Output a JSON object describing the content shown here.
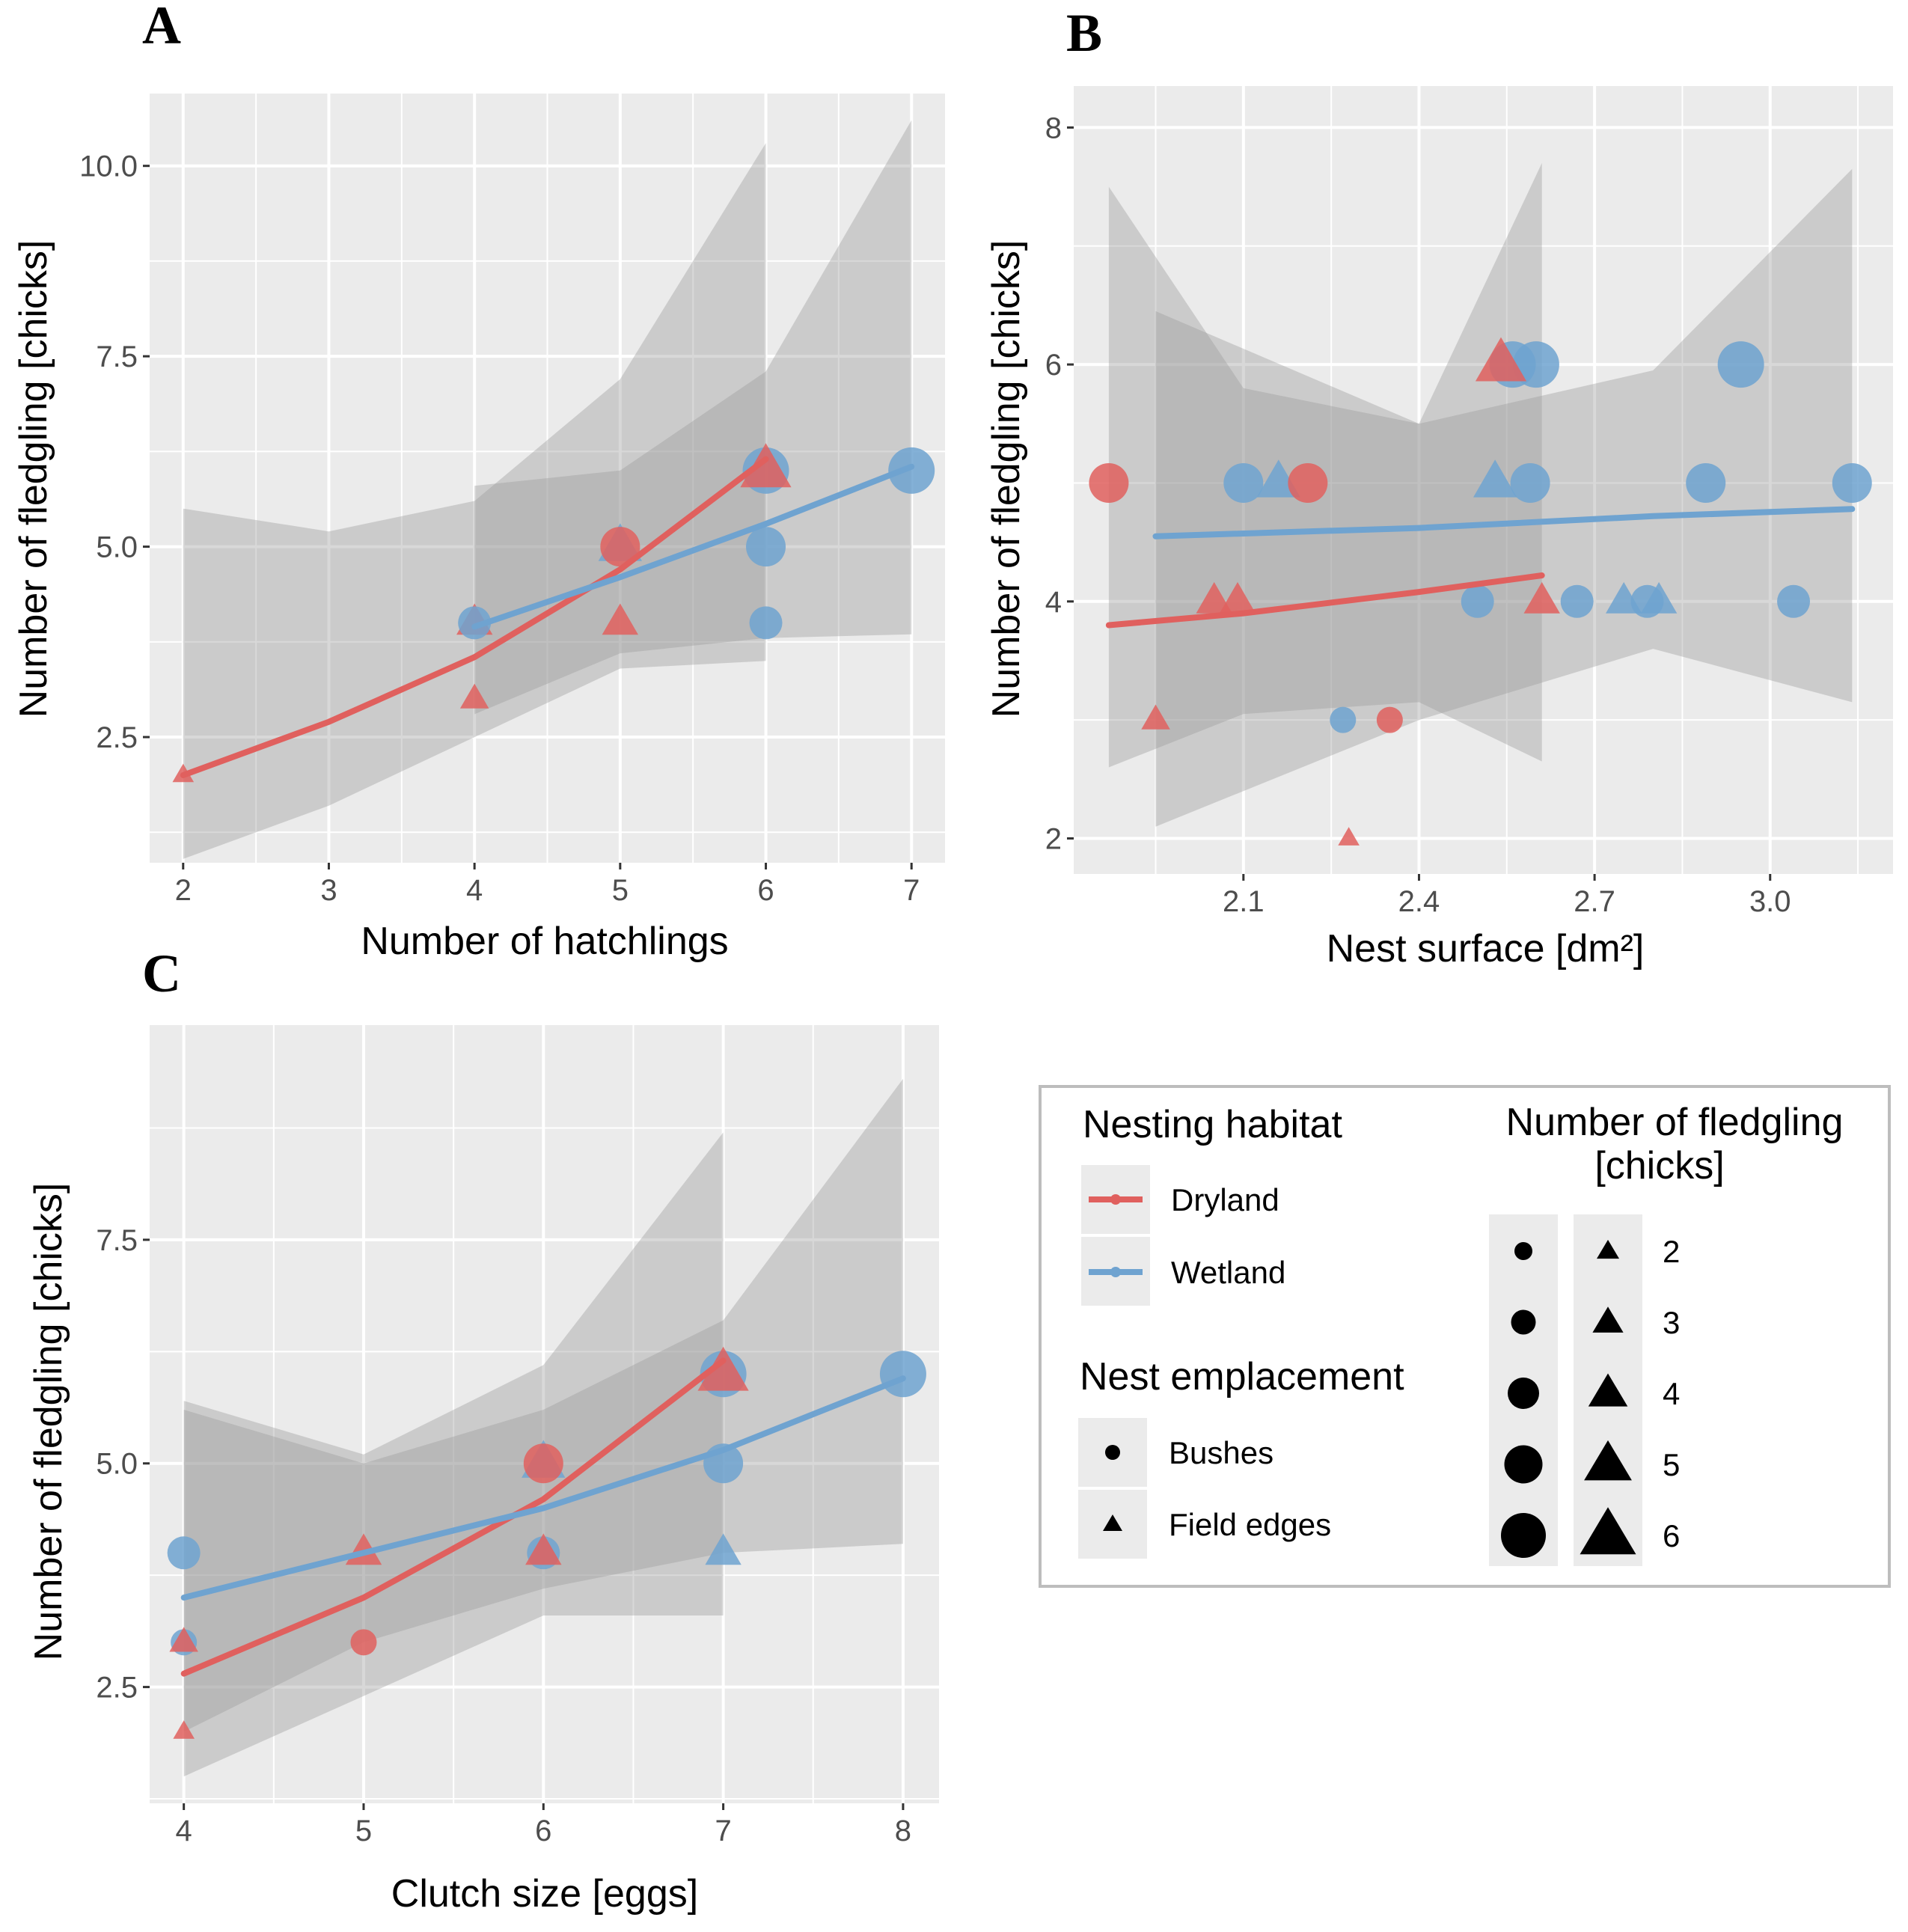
{
  "colors": {
    "dryland": "#e0605e",
    "wetland": "#6fa3d0",
    "panel_bg": "#ebebeb",
    "ribbon": "#999999"
  },
  "chart_data": [
    {
      "panel": "A",
      "type": "scatter",
      "xlabel": "Number of hatchlings",
      "ylabel": "Number of fledgling [chicks]",
      "xlim": [
        1.77,
        7.23
      ],
      "ylim": [
        0.85,
        10.95
      ],
      "xticks": [
        2,
        3,
        4,
        5,
        6,
        7
      ],
      "xtick_labels": [
        "2",
        "3",
        "4",
        "5",
        "6",
        "7"
      ],
      "yticks": [
        2.5,
        5.0,
        7.5,
        10.0
      ],
      "ytick_labels": [
        "2.5",
        "5.0",
        "7.5",
        "10.0"
      ],
      "points": [
        {
          "x": 2,
          "y": 2,
          "habitat": "Dryland",
          "shape": "Field edges"
        },
        {
          "x": 4,
          "y": 3,
          "habitat": "Dryland",
          "shape": "Field edges"
        },
        {
          "x": 4,
          "y": 4,
          "habitat": "Dryland",
          "shape": "Field edges"
        },
        {
          "x": 4,
          "y": 4,
          "habitat": "Wetland",
          "shape": "Bushes"
        },
        {
          "x": 5,
          "y": 4,
          "habitat": "Dryland",
          "shape": "Field edges"
        },
        {
          "x": 5,
          "y": 5,
          "habitat": "Wetland",
          "shape": "Field edges"
        },
        {
          "x": 5,
          "y": 5,
          "habitat": "Dryland",
          "shape": "Bushes"
        },
        {
          "x": 6,
          "y": 4,
          "habitat": "Wetland",
          "shape": "Bushes"
        },
        {
          "x": 6,
          "y": 5,
          "habitat": "Wetland",
          "shape": "Bushes"
        },
        {
          "x": 6,
          "y": 6,
          "habitat": "Wetland",
          "shape": "Bushes"
        },
        {
          "x": 6,
          "y": 6,
          "habitat": "Dryland",
          "shape": "Field edges"
        },
        {
          "x": 7,
          "y": 6,
          "habitat": "Wetland",
          "shape": "Bushes"
        }
      ],
      "series": [
        {
          "name": "Dryland",
          "x": [
            2,
            3,
            4,
            5,
            6
          ],
          "fit": [
            2.0,
            2.7,
            3.55,
            4.7,
            6.15
          ],
          "lower": [
            0.9,
            1.6,
            2.5,
            3.4,
            3.5
          ],
          "upper": [
            5.5,
            5.2,
            5.6,
            7.2,
            10.3
          ]
        },
        {
          "name": "Wetland",
          "x": [
            4,
            5,
            6,
            7
          ],
          "fit": [
            3.95,
            4.6,
            5.3,
            6.05
          ],
          "lower": [
            2.8,
            3.6,
            3.8,
            3.85
          ],
          "upper": [
            5.8,
            6.0,
            7.3,
            10.6
          ]
        }
      ]
    },
    {
      "panel": "B",
      "type": "scatter",
      "xlabel": "Nest surface [dm²]",
      "ylabel": "Number of fledgling [chicks]",
      "xlim": [
        1.81,
        3.21
      ],
      "ylim": [
        1.7,
        8.35
      ],
      "xticks": [
        2.1,
        2.4,
        2.7,
        3.0
      ],
      "xtick_labels": [
        "2.1",
        "2.4",
        "2.7",
        "3.0"
      ],
      "yticks": [
        2,
        4,
        6,
        8
      ],
      "ytick_labels": [
        "2",
        "4",
        "6",
        "8"
      ],
      "points": [
        {
          "x": 1.87,
          "y": 5,
          "habitat": "Dryland",
          "shape": "Bushes"
        },
        {
          "x": 1.95,
          "y": 3,
          "habitat": "Dryland",
          "shape": "Field edges"
        },
        {
          "x": 2.05,
          "y": 4,
          "habitat": "Dryland",
          "shape": "Field edges"
        },
        {
          "x": 2.09,
          "y": 4,
          "habitat": "Dryland",
          "shape": "Field edges"
        },
        {
          "x": 2.1,
          "y": 5,
          "habitat": "Wetland",
          "shape": "Bushes"
        },
        {
          "x": 2.16,
          "y": 5,
          "habitat": "Wetland",
          "shape": "Field edges"
        },
        {
          "x": 2.21,
          "y": 5,
          "habitat": "Dryland",
          "shape": "Bushes"
        },
        {
          "x": 2.27,
          "y": 3,
          "habitat": "Wetland",
          "shape": "Bushes"
        },
        {
          "x": 2.28,
          "y": 2,
          "habitat": "Dryland",
          "shape": "Field edges"
        },
        {
          "x": 2.35,
          "y": 3,
          "habitat": "Dryland",
          "shape": "Bushes"
        },
        {
          "x": 2.5,
          "y": 4,
          "habitat": "Wetland",
          "shape": "Bushes"
        },
        {
          "x": 2.53,
          "y": 5,
          "habitat": "Wetland",
          "shape": "Field edges"
        },
        {
          "x": 2.56,
          "y": 6,
          "habitat": "Wetland",
          "shape": "Bushes"
        },
        {
          "x": 2.6,
          "y": 6,
          "habitat": "Wetland",
          "shape": "Bushes"
        },
        {
          "x": 2.54,
          "y": 6,
          "habitat": "Dryland",
          "shape": "Field edges"
        },
        {
          "x": 2.59,
          "y": 5,
          "habitat": "Wetland",
          "shape": "Bushes"
        },
        {
          "x": 2.61,
          "y": 4,
          "habitat": "Dryland",
          "shape": "Field edges"
        },
        {
          "x": 2.67,
          "y": 4,
          "habitat": "Wetland",
          "shape": "Bushes"
        },
        {
          "x": 2.75,
          "y": 4,
          "habitat": "Wetland",
          "shape": "Field edges"
        },
        {
          "x": 2.79,
          "y": 4,
          "habitat": "Wetland",
          "shape": "Bushes"
        },
        {
          "x": 2.81,
          "y": 4,
          "habitat": "Wetland",
          "shape": "Field edges"
        },
        {
          "x": 2.89,
          "y": 5,
          "habitat": "Wetland",
          "shape": "Bushes"
        },
        {
          "x": 2.95,
          "y": 6,
          "habitat": "Wetland",
          "shape": "Bushes"
        },
        {
          "x": 3.04,
          "y": 4,
          "habitat": "Wetland",
          "shape": "Bushes"
        },
        {
          "x": 3.14,
          "y": 5,
          "habitat": "Wetland",
          "shape": "Bushes"
        }
      ],
      "series": [
        {
          "name": "Dryland",
          "x": [
            1.87,
            2.1,
            2.4,
            2.61
          ],
          "fit": [
            3.8,
            3.9,
            4.08,
            4.22
          ],
          "lower": [
            2.6,
            3.05,
            3.15,
            2.65
          ],
          "upper": [
            7.5,
            5.8,
            5.5,
            7.7
          ]
        },
        {
          "name": "Wetland",
          "x": [
            1.95,
            2.4,
            2.8,
            3.14
          ],
          "fit": [
            4.55,
            4.62,
            4.72,
            4.78
          ],
          "lower": [
            2.1,
            3.0,
            3.6,
            3.15
          ],
          "upper": [
            6.45,
            5.5,
            5.95,
            7.65
          ]
        }
      ]
    },
    {
      "panel": "C",
      "type": "scatter",
      "xlabel": "Clutch size [eggs]",
      "ylabel": "Number of fledgling [chicks]",
      "xlim": [
        3.81,
        8.2
      ],
      "ylim": [
        1.2,
        9.9
      ],
      "xticks": [
        4,
        5,
        6,
        7,
        8
      ],
      "xtick_labels": [
        "4",
        "5",
        "6",
        "7",
        "8"
      ],
      "yticks": [
        2.5,
        5.0,
        7.5
      ],
      "ytick_labels": [
        "2.5",
        "5.0",
        "7.5"
      ],
      "points": [
        {
          "x": 4,
          "y": 2,
          "habitat": "Dryland",
          "shape": "Field edges"
        },
        {
          "x": 4,
          "y": 3,
          "habitat": "Wetland",
          "shape": "Bushes"
        },
        {
          "x": 4,
          "y": 3,
          "habitat": "Dryland",
          "shape": "Field edges"
        },
        {
          "x": 4,
          "y": 4,
          "habitat": "Wetland",
          "shape": "Bushes"
        },
        {
          "x": 5,
          "y": 3,
          "habitat": "Dryland",
          "shape": "Bushes"
        },
        {
          "x": 5,
          "y": 4,
          "habitat": "Dryland",
          "shape": "Field edges"
        },
        {
          "x": 6,
          "y": 4,
          "habitat": "Wetland",
          "shape": "Bushes"
        },
        {
          "x": 6,
          "y": 4,
          "habitat": "Dryland",
          "shape": "Field edges"
        },
        {
          "x": 6,
          "y": 5,
          "habitat": "Wetland",
          "shape": "Field edges"
        },
        {
          "x": 6,
          "y": 5,
          "habitat": "Dryland",
          "shape": "Bushes"
        },
        {
          "x": 7,
          "y": 4,
          "habitat": "Wetland",
          "shape": "Field edges"
        },
        {
          "x": 7,
          "y": 5,
          "habitat": "Wetland",
          "shape": "Bushes"
        },
        {
          "x": 7,
          "y": 6,
          "habitat": "Wetland",
          "shape": "Bushes"
        },
        {
          "x": 7,
          "y": 6,
          "habitat": "Dryland",
          "shape": "Field edges"
        },
        {
          "x": 8,
          "y": 6,
          "habitat": "Wetland",
          "shape": "Bushes"
        }
      ],
      "series": [
        {
          "name": "Dryland",
          "x": [
            4,
            5,
            6,
            7
          ],
          "fit": [
            2.65,
            3.5,
            4.6,
            6.15
          ],
          "lower": [
            1.5,
            2.4,
            3.3,
            3.3
          ],
          "upper": [
            5.7,
            5.1,
            6.1,
            8.7
          ]
        },
        {
          "name": "Wetland",
          "x": [
            4,
            5,
            6,
            7,
            8
          ],
          "fit": [
            3.5,
            4.0,
            4.5,
            5.15,
            5.95
          ],
          "lower": [
            2.0,
            3.0,
            3.6,
            4.0,
            4.1
          ],
          "upper": [
            5.6,
            5.0,
            5.6,
            6.6,
            9.3
          ]
        }
      ]
    }
  ],
  "legend": {
    "habitat_title": "Nesting habitat",
    "habitat_items": [
      "Dryland",
      "Wetland"
    ],
    "emplacement_title": "Nest emplacement",
    "emplacement_items": [
      "Bushes",
      "Field edges"
    ],
    "size_title_line1": "Number of fledgling",
    "size_title_line2": "[chicks]",
    "size_items": [
      "2",
      "3",
      "4",
      "5",
      "6"
    ]
  }
}
